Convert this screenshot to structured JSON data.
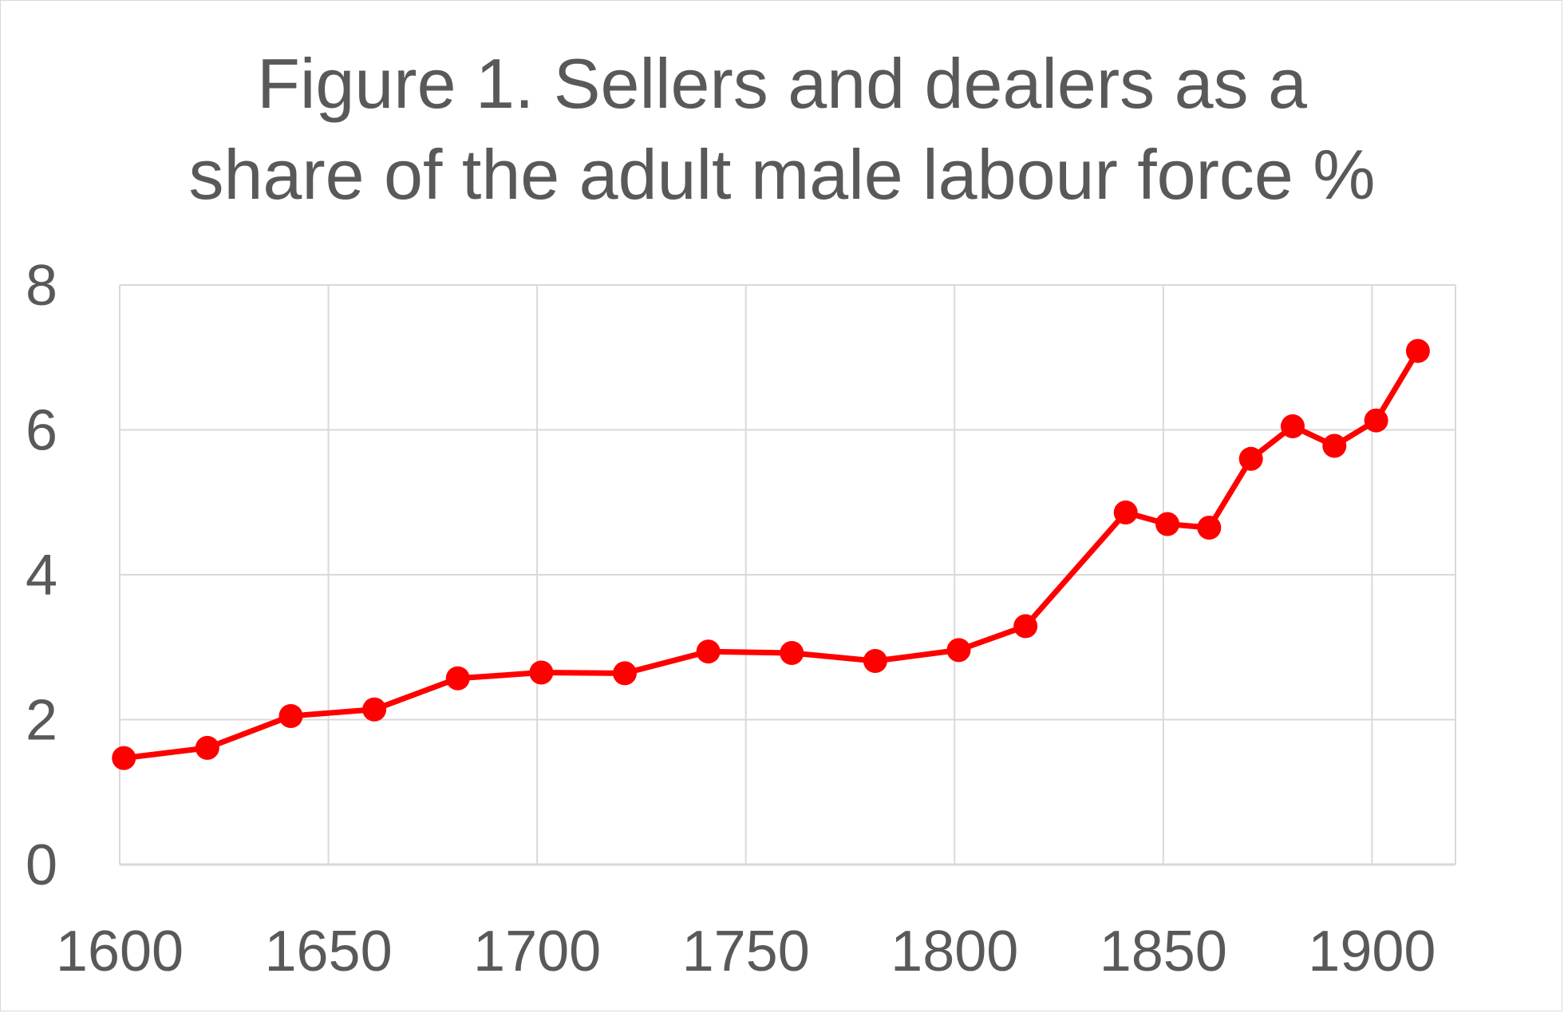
{
  "chart_data": {
    "type": "line",
    "title": [
      "Figure 1. Sellers and dealers as a",
      "share of the adult male labour force %"
    ],
    "xlabel": "",
    "ylabel": "",
    "xlim": [
      1600,
      1920
    ],
    "ylim": [
      0,
      8
    ],
    "x_ticks": [
      "1600",
      "1650",
      "1700",
      "1750",
      "1800",
      "1850",
      "1900"
    ],
    "y_ticks": [
      "0",
      "2",
      "4",
      "6",
      "8"
    ],
    "grid": true,
    "legend": "none",
    "series": [
      {
        "color": "#ff0000",
        "marker": "circle",
        "points": [
          [
            1601,
            1.47
          ],
          [
            1621,
            1.61
          ],
          [
            1641,
            2.05
          ],
          [
            1661,
            2.14
          ],
          [
            1681,
            2.57
          ],
          [
            1701,
            2.65
          ],
          [
            1721,
            2.64
          ],
          [
            1741,
            2.94
          ],
          [
            1761,
            2.92
          ],
          [
            1781,
            2.81
          ],
          [
            1801,
            2.96
          ],
          [
            1817,
            3.29
          ],
          [
            1841,
            4.86
          ],
          [
            1851,
            4.7
          ],
          [
            1861,
            4.65
          ],
          [
            1871,
            5.6
          ],
          [
            1881,
            6.05
          ],
          [
            1891,
            5.78
          ],
          [
            1901,
            6.13
          ],
          [
            1911,
            7.09
          ]
        ]
      }
    ]
  }
}
